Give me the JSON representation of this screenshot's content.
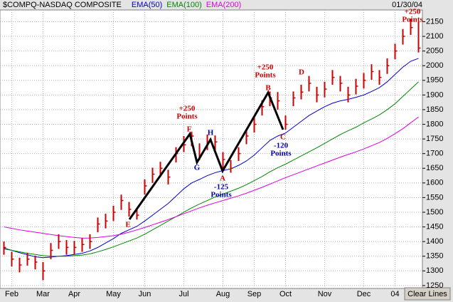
{
  "chart_data": {
    "type": "ohlc",
    "title": "$COMPQ-NASDAQ COMPOSITE",
    "date": "01/30/04",
    "button": "Clear Lines",
    "color": "#cc0000",
    "categories": [
      null,
      "Feb",
      null,
      null,
      null,
      "Mar",
      null,
      null,
      null,
      "Apr",
      null,
      null,
      null,
      null,
      "May",
      null,
      null,
      null,
      "Jun",
      null,
      null,
      null,
      null,
      "Jul",
      null,
      null,
      null,
      null,
      "Aug",
      null,
      null,
      null,
      "Sep",
      null,
      null,
      null,
      "Oct",
      null,
      null,
      null,
      null,
      "Nov",
      null,
      null,
      null,
      null,
      "Dec",
      null,
      null,
      null,
      "04",
      null,
      null,
      null
    ],
    "high": [
      1400,
      1365,
      1345,
      1362,
      1352,
      1330,
      1395,
      1425,
      1405,
      1402,
      1412,
      1425,
      1482,
      1495,
      1522,
      1560,
      1535,
      1512,
      1612,
      1652,
      1672,
      1645,
      1722,
      1760,
      1775,
      1735,
      1765,
      1762,
      1705,
      1678,
      1722,
      1782,
      1825,
      1882,
      1912,
      1910,
      1830,
      1912,
      1935,
      1965,
      1928,
      1945,
      1985,
      1965,
      1928,
      1955,
      1975,
      2005,
      1985,
      2025,
      2075,
      2125,
      2160,
      2150
    ],
    "low": [
      1355,
      1315,
      1295,
      1318,
      1305,
      1268,
      1340,
      1375,
      1355,
      1355,
      1365,
      1375,
      1432,
      1445,
      1470,
      1508,
      1485,
      1475,
      1560,
      1600,
      1620,
      1595,
      1670,
      1705,
      1725,
      1678,
      1712,
      1712,
      1650,
      1635,
      1675,
      1732,
      1772,
      1830,
      1862,
      1850,
      1782,
      1862,
      1885,
      1912,
      1875,
      1892,
      1935,
      1912,
      1875,
      1902,
      1922,
      1952,
      1935,
      1972,
      2022,
      2072,
      2105,
      2045
    ],
    "close": [
      1380,
      1340,
      1320,
      1340,
      1330,
      1300,
      1370,
      1400,
      1380,
      1380,
      1390,
      1400,
      1460,
      1470,
      1500,
      1540,
      1510,
      1490,
      1590,
      1630,
      1650,
      1620,
      1700,
      1730,
      1760,
      1690,
      1740,
      1740,
      1680,
      1650,
      1700,
      1760,
      1800,
      1860,
      1890,
      1880,
      1800,
      1890,
      1910,
      1940,
      1900,
      1920,
      1960,
      1940,
      1900,
      1930,
      1950,
      1980,
      1960,
      2000,
      2050,
      2100,
      2130,
      2060
    ],
    "series": [
      {
        "name": "EMA(50)",
        "color": "#0000cc",
        "values": [
          1378,
          1370,
          1362,
          1355,
          1348,
          1345,
          1347,
          1350,
          1352,
          1356,
          1360,
          1368,
          1380,
          1395,
          1410,
          1428,
          1440,
          1452,
          1470,
          1490,
          1510,
          1530,
          1555,
          1580,
          1600,
          1612,
          1625,
          1635,
          1642,
          1648,
          1660,
          1675,
          1695,
          1720,
          1745,
          1760,
          1770,
          1790,
          1810,
          1830,
          1845,
          1860,
          1872,
          1880,
          1885,
          1892,
          1900,
          1912,
          1925,
          1945,
          1970,
          1995,
          2015,
          2025
        ]
      },
      {
        "name": "EMA(100)",
        "color": "#008800",
        "values": [
          1375,
          1370,
          1365,
          1360,
          1356,
          1352,
          1350,
          1350,
          1350,
          1352,
          1354,
          1358,
          1365,
          1373,
          1382,
          1392,
          1402,
          1412,
          1425,
          1440,
          1455,
          1470,
          1485,
          1500,
          1515,
          1528,
          1540,
          1552,
          1562,
          1572,
          1582,
          1594,
          1608,
          1622,
          1638,
          1652,
          1664,
          1678,
          1692,
          1706,
          1720,
          1735,
          1750,
          1765,
          1778,
          1790,
          1805,
          1818,
          1832,
          1850,
          1870,
          1895,
          1920,
          1945
        ]
      },
      {
        "name": "EMA(200)",
        "color": "#dd00dd",
        "values": [
          1450,
          1445,
          1440,
          1436,
          1432,
          1428,
          1424,
          1420,
          1417,
          1414,
          1412,
          1412,
          1414,
          1417,
          1420,
          1425,
          1432,
          1440,
          1448,
          1457,
          1466,
          1475,
          1485,
          1495,
          1505,
          1515,
          1524,
          1532,
          1540,
          1548,
          1556,
          1565,
          1575,
          1585,
          1596,
          1607,
          1618,
          1628,
          1638,
          1648,
          1658,
          1668,
          1678,
          1688,
          1697,
          1706,
          1716,
          1727,
          1738,
          1752,
          1768,
          1785,
          1805,
          1825
        ]
      }
    ],
    "ylim": [
      1240,
      2190
    ],
    "yticks": [
      1250,
      1300,
      1350,
      1400,
      1450,
      1500,
      1550,
      1600,
      1650,
      1700,
      1750,
      1800,
      1850,
      1900,
      1950,
      2000,
      2050,
      2100,
      2150
    ],
    "grid": true,
    "annotations": [
      [
        "+250",
        "Points"
      ],
      [
        "F"
      ],
      [
        "G"
      ],
      [
        "H"
      ],
      [
        "A"
      ],
      [
        "-125",
        "Points"
      ],
      [
        "+250",
        "Points"
      ],
      [
        "B"
      ],
      [
        "C"
      ],
      [
        "-120",
        "Points"
      ],
      [
        "D"
      ],
      [
        "+250",
        "Points"
      ],
      [
        "E"
      ]
    ]
  }
}
